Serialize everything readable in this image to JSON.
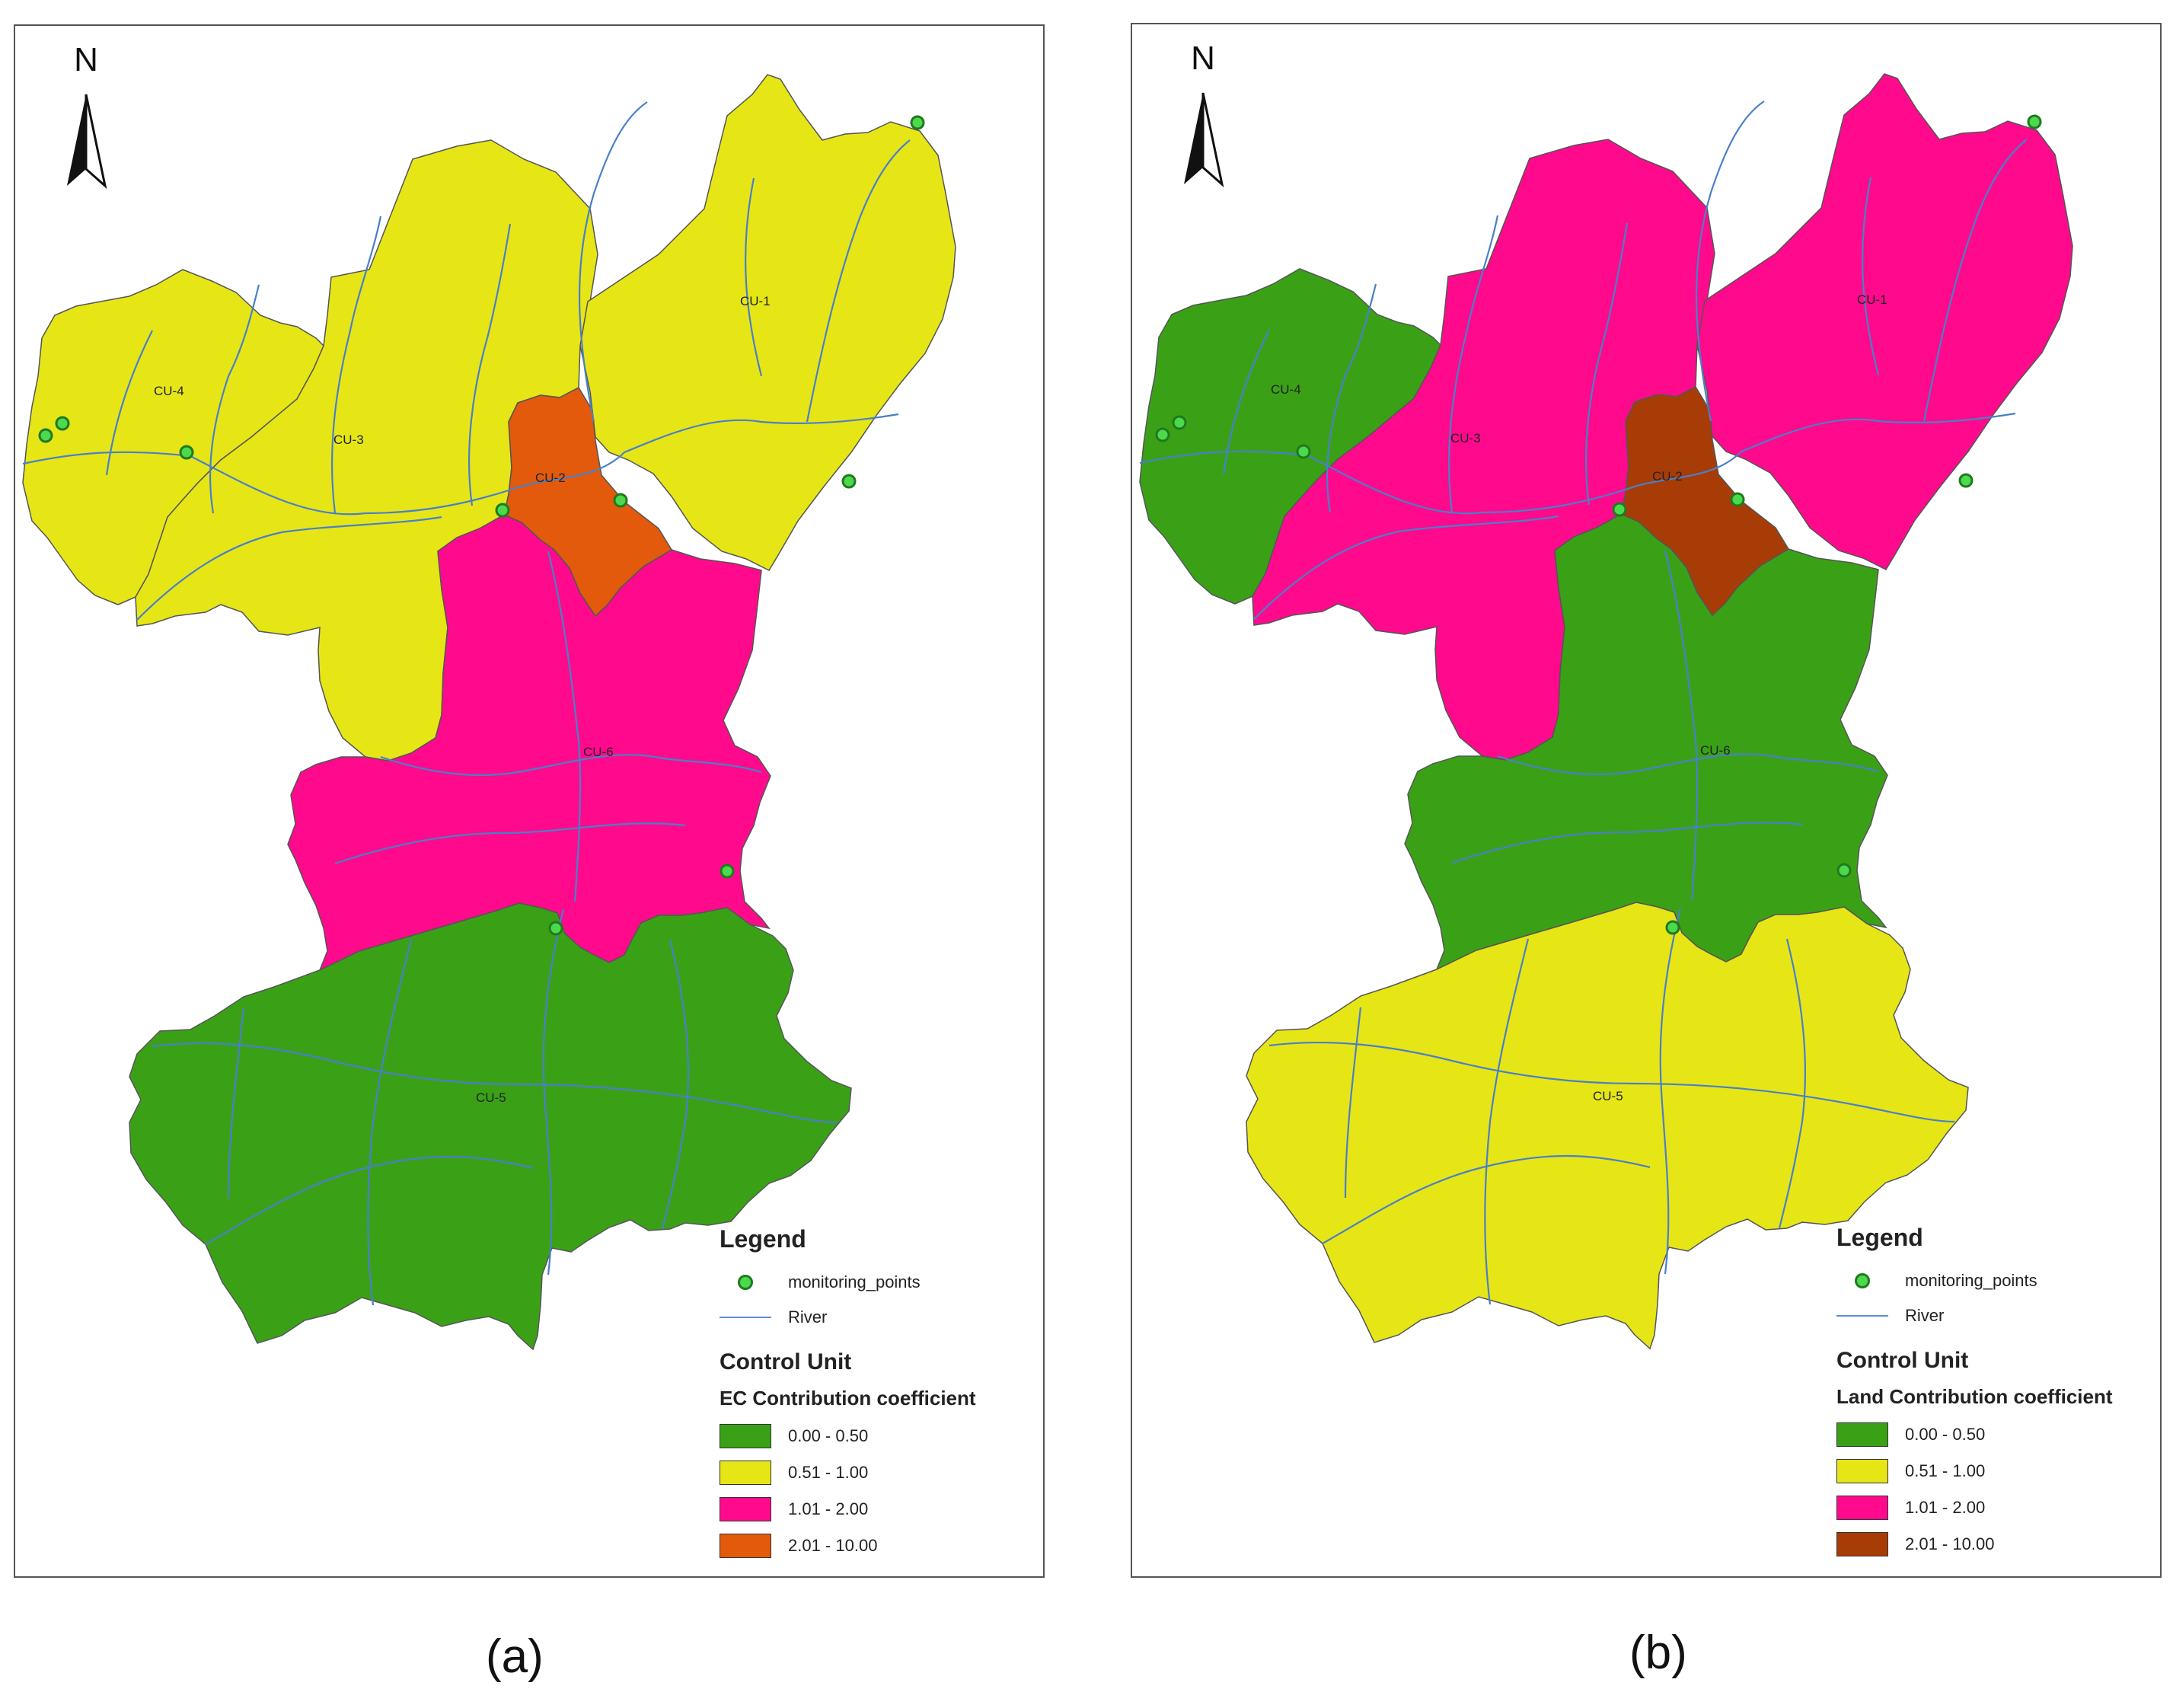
{
  "panels": [
    {
      "id": "a",
      "caption": "(a)",
      "north": "N",
      "cu_labels": [
        "CU-1",
        "CU-2",
        "CU-3",
        "CU-4",
        "CU-5",
        "CU-6"
      ],
      "legend": {
        "title": "Legend",
        "monitoring": "monitoring_points",
        "river": "River",
        "heading": "Control Unit",
        "subheading": "EC Contribution coefficient",
        "classes": [
          {
            "label": "0.00 - 0.50",
            "color": "#3aa117"
          },
          {
            "label": "0.51 - 1.00",
            "color": "#e6e617"
          },
          {
            "label": "1.01 - 2.00",
            "color": "#ff0a8c"
          },
          {
            "label": "2.01 - 10.00",
            "color": "#e35a0c"
          }
        ]
      },
      "unit_class": {
        "CU-1": 1,
        "CU-2": 3,
        "CU-3": 1,
        "CU-4": 1,
        "CU-5": 0,
        "CU-6": 2
      }
    },
    {
      "id": "b",
      "caption": "(b)",
      "north": "N",
      "cu_labels": [
        "CU-1",
        "CU-2",
        "CU-3",
        "CU-4",
        "CU-5",
        "CU-6"
      ],
      "legend": {
        "title": "Legend",
        "monitoring": "monitoring_points",
        "river": "River",
        "heading": "Control Unit",
        "subheading": "Land Contribution coefficient",
        "classes": [
          {
            "label": "0.00 - 0.50",
            "color": "#3aa117"
          },
          {
            "label": "0.51 - 1.00",
            "color": "#e6e617"
          },
          {
            "label": "1.01 - 2.00",
            "color": "#ff0a8c"
          },
          {
            "label": "2.01 - 10.00",
            "color": "#a83c06"
          }
        ]
      },
      "unit_class": {
        "CU-1": 2,
        "CU-2": 3,
        "CU-3": 2,
        "CU-4": 0,
        "CU-5": 1,
        "CU-6": 0
      }
    }
  ]
}
